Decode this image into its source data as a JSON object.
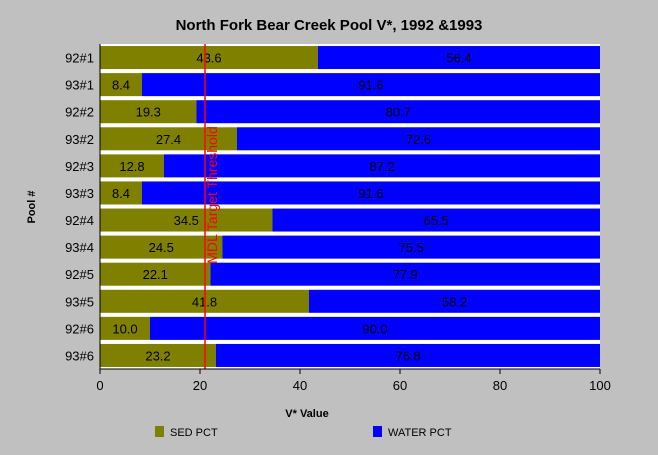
{
  "chart_data": {
    "type": "bar",
    "orientation": "horizontal",
    "stacked": true,
    "title": "North Fork Bear Creek Pool V*, 1992 &1993",
    "xlabel": "V* Value",
    "ylabel": "Pool #",
    "xlim": [
      0,
      100
    ],
    "xticks": [
      "0",
      "20",
      "40",
      "60",
      "80",
      "100"
    ],
    "categories": [
      "92#1",
      "93#1",
      "92#2",
      "93#2",
      "92#3",
      "93#3",
      "92#4",
      "93#4",
      "92#5",
      "93#5",
      "92#6",
      "93#6"
    ],
    "series": [
      {
        "name": "SED PCT",
        "color": "#808000",
        "values": [
          43.6,
          8.4,
          19.3,
          27.4,
          12.8,
          8.4,
          34.5,
          24.5,
          22.1,
          41.8,
          10.0,
          23.2
        ],
        "labels": [
          "43.6",
          "8.4",
          "19.3",
          "27.4",
          "12.8",
          "8.4",
          "34.5",
          "24.5",
          "22.1",
          "41.8",
          "10.0",
          "23.2"
        ]
      },
      {
        "name": "WATER PCT",
        "color": "#0000ff",
        "values": [
          56.4,
          91.6,
          80.7,
          72.6,
          87.2,
          91.6,
          65.5,
          75.5,
          77.9,
          58.2,
          90.0,
          76.8
        ],
        "labels": [
          "56.4",
          "91.6",
          "80.7",
          "72.6",
          "87.2",
          "91.6",
          "65.5",
          "75.5",
          "77.9",
          "58.2",
          "90.0",
          "76.8"
        ]
      }
    ],
    "reference_line": {
      "value": 21,
      "label": "MDL Target Threshold",
      "color": "#ff0000"
    },
    "grid": false,
    "legend_position": "bottom"
  }
}
